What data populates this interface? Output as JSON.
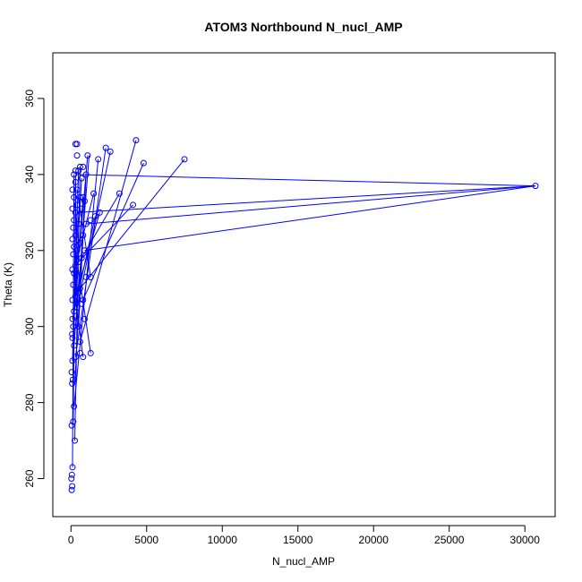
{
  "chart_data": {
    "type": "scatter",
    "title": "ATOM3 Northbound N_nucl_AMP",
    "xlabel": "N_nucl_AMP",
    "ylabel": "Theta (K)",
    "xlim": [
      -1200,
      32000
    ],
    "ylim": [
      250,
      372
    ],
    "xticks": [
      0,
      5000,
      10000,
      15000,
      20000,
      25000,
      30000
    ],
    "xtick_labels": [
      "0",
      "5000",
      "10000",
      "15000",
      "20000",
      "25000",
      "30000"
    ],
    "yticks": [
      260,
      280,
      300,
      320,
      340,
      360
    ],
    "ytick_labels": [
      "260",
      "280",
      "300",
      "320",
      "340",
      "360"
    ],
    "grid": false,
    "legend": "none",
    "color": "#0000ff",
    "series": [
      {
        "values": [
          [
            50,
            257
          ],
          [
            80,
            258
          ],
          [
            30,
            260
          ],
          [
            60,
            261
          ],
          [
            100,
            263
          ],
          [
            250,
            270
          ],
          [
            150,
            275
          ],
          [
            50,
            274
          ],
          [
            200,
            279
          ],
          [
            80,
            285
          ],
          [
            120,
            286
          ],
          [
            50,
            288
          ],
          [
            100,
            291
          ],
          [
            300,
            292
          ],
          [
            800,
            292
          ],
          [
            600,
            293
          ],
          [
            1300,
            293
          ],
          [
            200,
            295
          ],
          [
            100,
            297
          ],
          [
            600,
            296
          ],
          [
            80,
            298
          ],
          [
            150,
            300
          ],
          [
            500,
            300
          ],
          [
            100,
            302
          ],
          [
            900,
            302
          ],
          [
            200,
            304
          ],
          [
            400,
            305
          ],
          [
            700,
            306
          ],
          [
            100,
            307
          ],
          [
            300,
            308
          ],
          [
            800,
            307
          ],
          [
            500,
            309
          ],
          [
            150,
            311
          ],
          [
            600,
            310
          ],
          [
            1000,
            313
          ],
          [
            1300,
            313
          ],
          [
            200,
            314
          ],
          [
            100,
            315
          ],
          [
            300,
            316
          ],
          [
            500,
            317
          ],
          [
            150,
            319
          ],
          [
            700,
            318
          ],
          [
            400,
            320
          ],
          [
            900,
            320
          ],
          [
            200,
            321
          ],
          [
            100,
            323
          ],
          [
            600,
            322
          ],
          [
            300,
            324
          ],
          [
            800,
            324
          ],
          [
            150,
            326
          ],
          [
            500,
            327
          ],
          [
            1000,
            327
          ],
          [
            1300,
            328
          ],
          [
            200,
            328
          ],
          [
            1600,
            329
          ],
          [
            1900,
            330
          ],
          [
            300,
            330
          ],
          [
            700,
            331
          ],
          [
            100,
            331
          ],
          [
            400,
            332
          ],
          [
            4100,
            332
          ],
          [
            900,
            333
          ],
          [
            200,
            334
          ],
          [
            600,
            334
          ],
          [
            800,
            334
          ],
          [
            3200,
            335
          ],
          [
            1500,
            335
          ],
          [
            100,
            336
          ],
          [
            400,
            336
          ],
          [
            300,
            338
          ],
          [
            30700,
            337
          ],
          [
            700,
            339
          ],
          [
            1000,
            340
          ],
          [
            200,
            340
          ],
          [
            300,
            341
          ],
          [
            500,
            341
          ],
          [
            800,
            342
          ],
          [
            600,
            342
          ],
          [
            4800,
            343
          ],
          [
            7500,
            344
          ],
          [
            1800,
            344
          ],
          [
            400,
            345
          ],
          [
            1100,
            345
          ],
          [
            2600,
            346
          ],
          [
            2300,
            347
          ],
          [
            400,
            348
          ],
          [
            300,
            348
          ],
          [
            4300,
            349
          ]
        ],
        "segments": [
          [
            [
              100,
              263
            ],
            [
              200,
              340
            ]
          ],
          [
            [
              300,
              340
            ],
            [
              400,
              300
            ]
          ],
          [
            [
              200,
              295
            ],
            [
              1200,
              345
            ]
          ],
          [
            [
              300,
              292
            ],
            [
              2300,
              347
            ]
          ],
          [
            [
              400,
              305
            ],
            [
              2600,
              346
            ]
          ],
          [
            [
              600,
              296
            ],
            [
              4300,
              349
            ]
          ],
          [
            [
              800,
              307
            ],
            [
              4800,
              343
            ]
          ],
          [
            [
              600,
              310
            ],
            [
              7500,
              344
            ]
          ],
          [
            [
              900,
              320
            ],
            [
              30700,
              337
            ]
          ],
          [
            [
              1000,
              327
            ],
            [
              30700,
              337
            ]
          ],
          [
            [
              500,
              317
            ],
            [
              4100,
              332
            ]
          ],
          [
            [
              700,
              318
            ],
            [
              3200,
              335
            ]
          ],
          [
            [
              200,
              279
            ],
            [
              1800,
              344
            ]
          ],
          [
            [
              150,
              275
            ],
            [
              300,
              338
            ]
          ],
          [
            [
              250,
              270
            ],
            [
              600,
              342
            ]
          ],
          [
            [
              300,
              308
            ],
            [
              1900,
              330
            ]
          ],
          [
            [
              1300,
              313
            ],
            [
              400,
              336
            ]
          ],
          [
            [
              100,
              302
            ],
            [
              1600,
              329
            ]
          ],
          [
            [
              800,
              324
            ],
            [
              200,
              321
            ]
          ],
          [
            [
              500,
              300
            ],
            [
              1000,
              340
            ]
          ],
          [
            [
              150,
              300
            ],
            [
              800,
              334
            ]
          ],
          [
            [
              200,
              304
            ],
            [
              700,
              339
            ]
          ],
          [
            [
              300,
              316
            ],
            [
              1500,
              335
            ]
          ],
          [
            [
              100,
              291
            ],
            [
              500,
              341
            ]
          ],
          [
            [
              600,
              322
            ],
            [
              1100,
              345
            ]
          ],
          [
            [
              250,
              285
            ],
            [
              900,
              333
            ]
          ],
          [
            [
              300,
              340
            ],
            [
              30700,
              337
            ]
          ],
          [
            [
              400,
              330
            ],
            [
              30700,
              337
            ]
          ],
          [
            [
              150,
              311
            ],
            [
              600,
              334
            ]
          ],
          [
            [
              1300,
              293
            ],
            [
              300,
              320
            ]
          ],
          [
            [
              800,
              292
            ],
            [
              200,
              310
            ]
          ]
        ]
      }
    ]
  }
}
